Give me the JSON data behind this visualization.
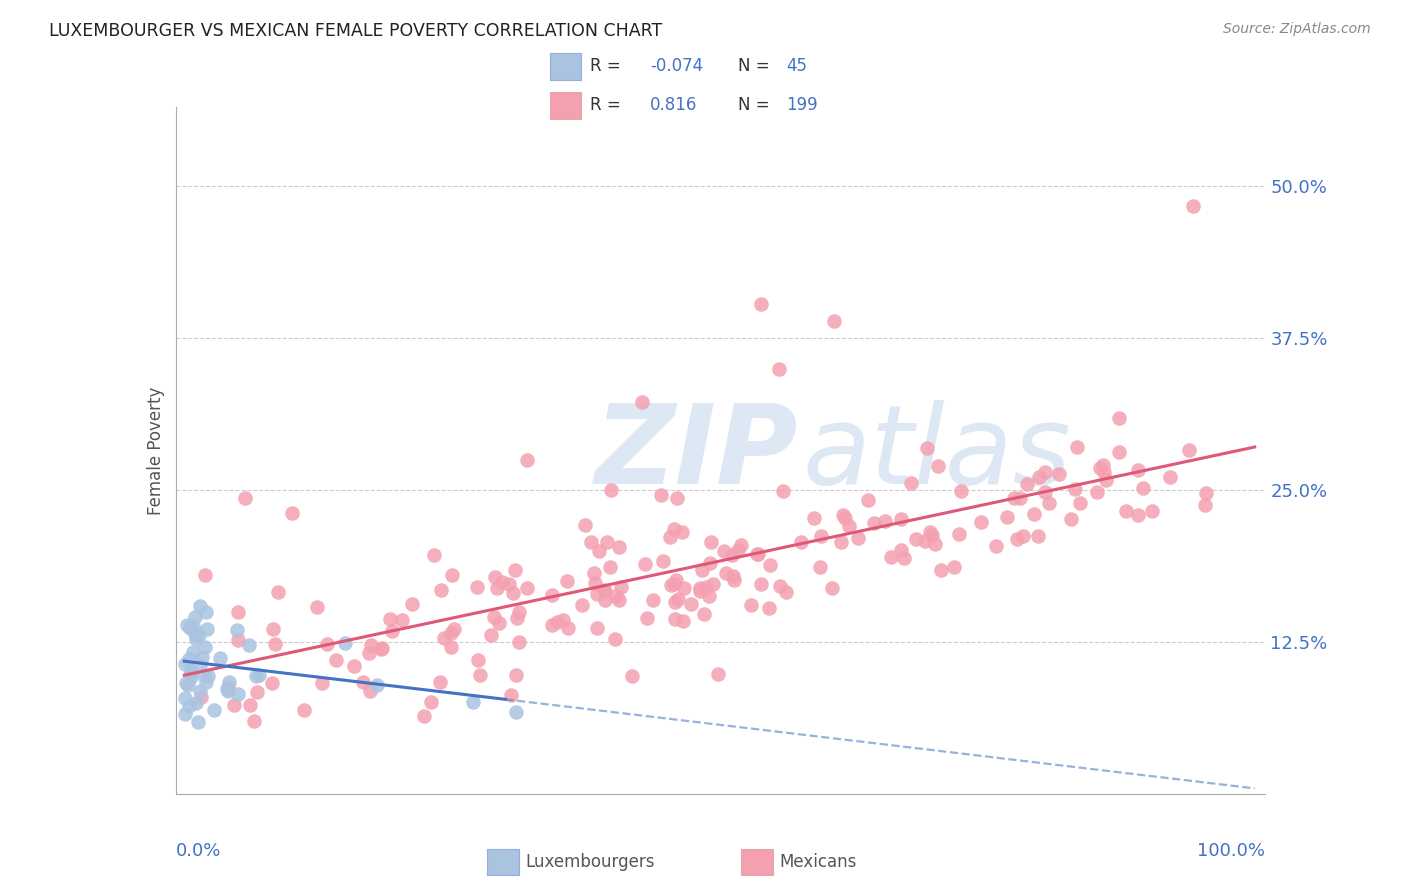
{
  "title": "LUXEMBOURGER VS MEXICAN FEMALE POVERTY CORRELATION CHART",
  "source": "Source: ZipAtlas.com",
  "ylabel": "Female Poverty",
  "ytick_values": [
    0.125,
    0.25,
    0.375,
    0.5
  ],
  "xlim": [
    0.0,
    1.0
  ],
  "ylim": [
    0.0,
    0.54
  ],
  "legend_blue_R": "-0.074",
  "legend_blue_N": "45",
  "legend_pink_R": "0.816",
  "legend_pink_N": "199",
  "blue_color": "#aac4e0",
  "pink_color": "#f4a0b0",
  "blue_line_color": "#4472c4",
  "pink_line_color": "#e05878",
  "watermark_zip": "ZIP",
  "watermark_atlas": "atlas",
  "watermark_color": "#dde8f4",
  "background_color": "#ffffff",
  "grid_color": "#cccccc",
  "title_color": "#222222",
  "legend_label_blue": "Luxembourgers",
  "legend_label_pink": "Mexicans"
}
